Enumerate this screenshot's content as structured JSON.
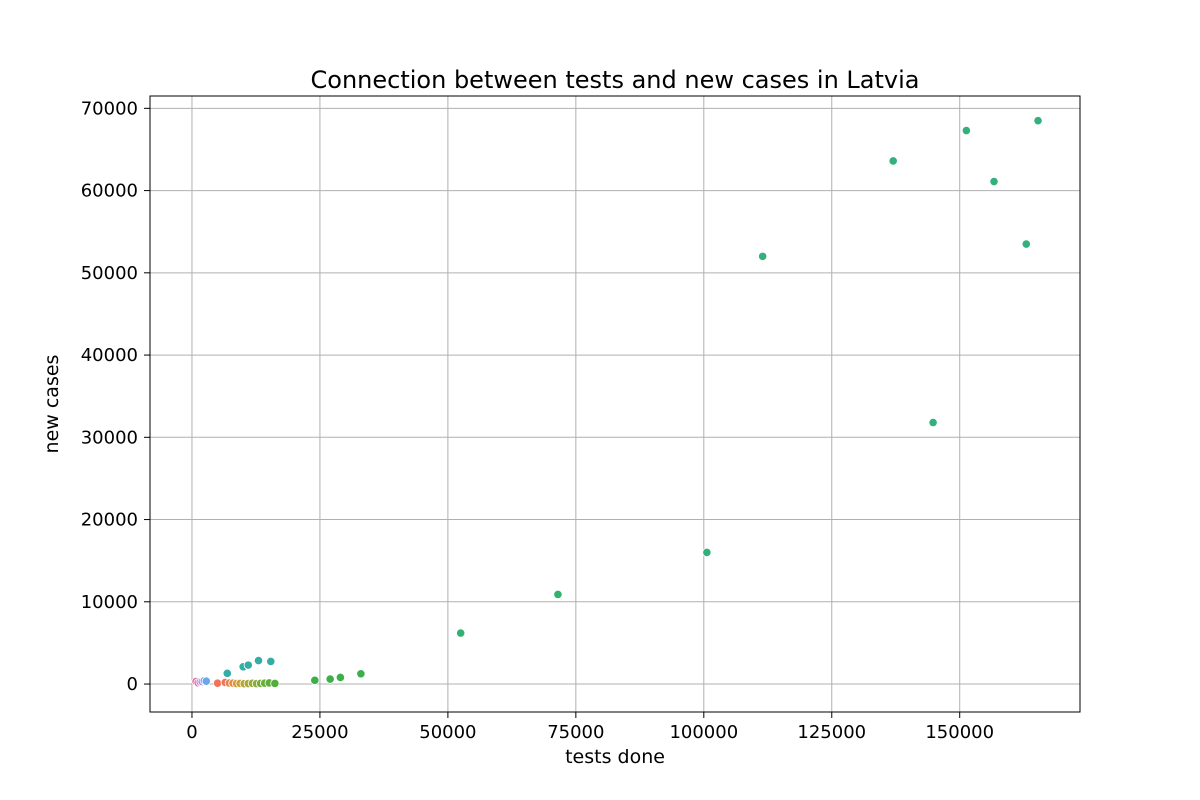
{
  "chart_data": {
    "type": "scatter",
    "title": "Connection between tests and new cases in Latvia",
    "xlabel": "tests done",
    "ylabel": "new cases",
    "xlim": [
      -8200,
      173500
    ],
    "ylim": [
      -3400,
      71500
    ],
    "xticks": [
      0,
      25000,
      50000,
      75000,
      100000,
      125000,
      150000
    ],
    "yticks": [
      0,
      10000,
      20000,
      30000,
      40000,
      50000,
      60000,
      70000
    ],
    "grid": true,
    "legend": "none",
    "points": [
      {
        "x": 800,
        "y": 300,
        "color": "#e8639a"
      },
      {
        "x": 1200,
        "y": 150,
        "color": "#e8639a"
      },
      {
        "x": 1600,
        "y": 250,
        "color": "#c77dd6"
      },
      {
        "x": 2000,
        "y": 300,
        "color": "#9b8fe0"
      },
      {
        "x": 2400,
        "y": 400,
        "color": "#7b9ee8"
      },
      {
        "x": 2800,
        "y": 350,
        "color": "#6aa6e8"
      },
      {
        "x": 5000,
        "y": 100,
        "color": "#f0735a"
      },
      {
        "x": 6500,
        "y": 200,
        "color": "#f0735a"
      },
      {
        "x": 7300,
        "y": 120,
        "color": "#ea8247"
      },
      {
        "x": 8000,
        "y": 100,
        "color": "#e49040"
      },
      {
        "x": 8700,
        "y": 60,
        "color": "#d89a3a"
      },
      {
        "x": 9400,
        "y": 80,
        "color": "#c8a23a"
      },
      {
        "x": 10200,
        "y": 40,
        "color": "#b8a53a"
      },
      {
        "x": 11000,
        "y": 60,
        "color": "#a8a83a"
      },
      {
        "x": 11800,
        "y": 90,
        "color": "#98aa3a"
      },
      {
        "x": 12600,
        "y": 50,
        "color": "#88ab3a"
      },
      {
        "x": 13400,
        "y": 70,
        "color": "#7aac3a"
      },
      {
        "x": 14200,
        "y": 110,
        "color": "#6aad3a"
      },
      {
        "x": 15100,
        "y": 140,
        "color": "#5aae3a"
      },
      {
        "x": 16200,
        "y": 80,
        "color": "#4fae3c"
      },
      {
        "x": 6900,
        "y": 1300,
        "color": "#36ada4"
      },
      {
        "x": 10000,
        "y": 2100,
        "color": "#36ada4"
      },
      {
        "x": 11000,
        "y": 2300,
        "color": "#36ada4"
      },
      {
        "x": 13000,
        "y": 2850,
        "color": "#36ada4"
      },
      {
        "x": 15400,
        "y": 2750,
        "color": "#36ada4"
      },
      {
        "x": 24000,
        "y": 450,
        "color": "#3bb04a"
      },
      {
        "x": 27000,
        "y": 600,
        "color": "#3bb04a"
      },
      {
        "x": 29000,
        "y": 800,
        "color": "#3bb04a"
      },
      {
        "x": 33000,
        "y": 1250,
        "color": "#3bb04a"
      },
      {
        "x": 52500,
        "y": 6200,
        "color": "#34b070"
      },
      {
        "x": 71500,
        "y": 10900,
        "color": "#34b070"
      },
      {
        "x": 100600,
        "y": 16000,
        "color": "#34b07c"
      },
      {
        "x": 111500,
        "y": 52000,
        "color": "#34b07c"
      },
      {
        "x": 137000,
        "y": 63600,
        "color": "#34b07c"
      },
      {
        "x": 144800,
        "y": 31800,
        "color": "#34b07c"
      },
      {
        "x": 151300,
        "y": 67300,
        "color": "#34b07c"
      },
      {
        "x": 156700,
        "y": 61100,
        "color": "#34b07c"
      },
      {
        "x": 163000,
        "y": 53500,
        "color": "#34b07c"
      },
      {
        "x": 165300,
        "y": 68500,
        "color": "#34b07c"
      }
    ]
  }
}
